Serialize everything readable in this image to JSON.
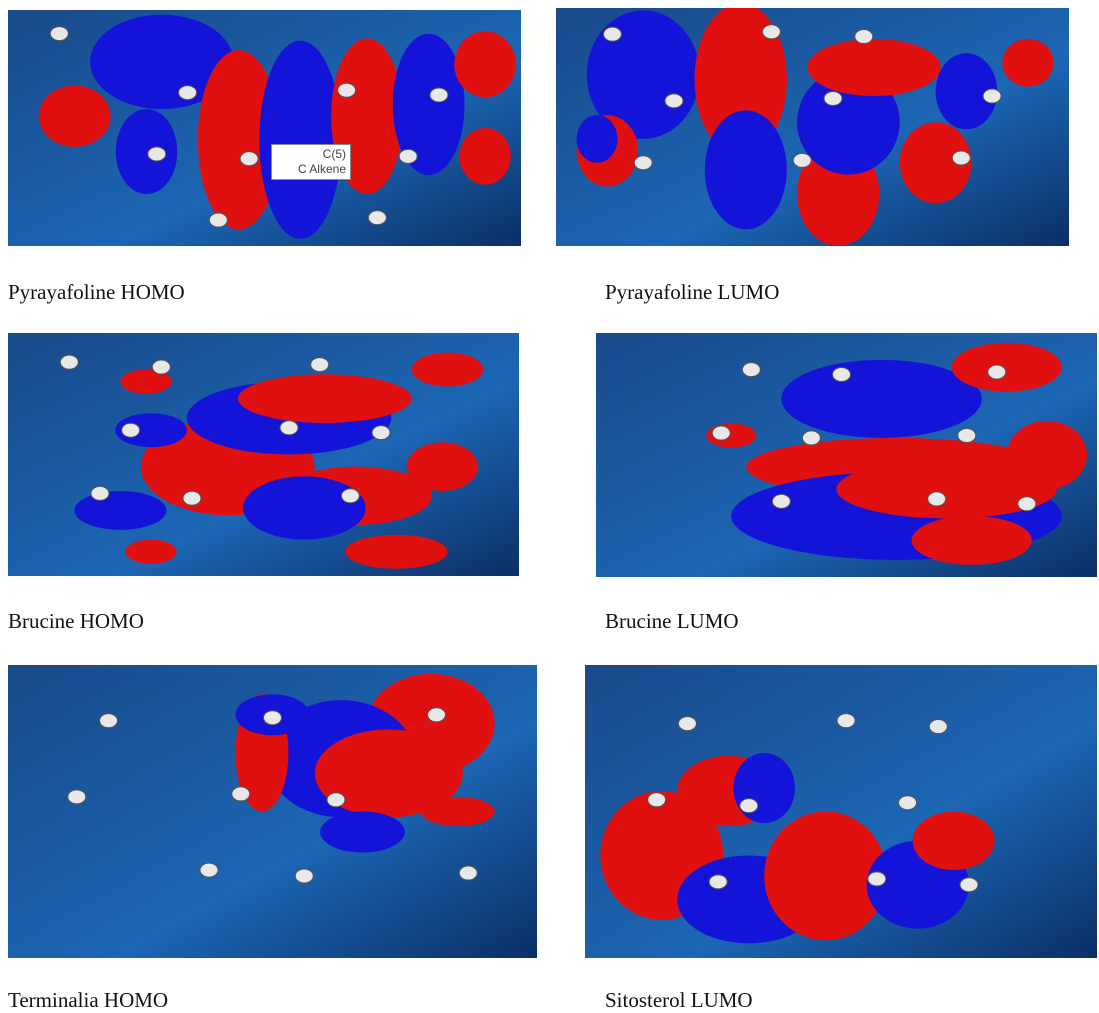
{
  "panels": [
    {
      "caption": "Pyrayafoline HOMO",
      "tooltip": {
        "atom": "C(5)",
        "type": "C Alkene"
      }
    },
    {
      "caption": "Pyrayafoline LUMO"
    },
    {
      "caption": "Brucine HOMO"
    },
    {
      "caption": "Brucine LUMO"
    },
    {
      "caption": "Terminalia HOMO"
    },
    {
      "caption": "Sitosterol LUMO"
    }
  ]
}
